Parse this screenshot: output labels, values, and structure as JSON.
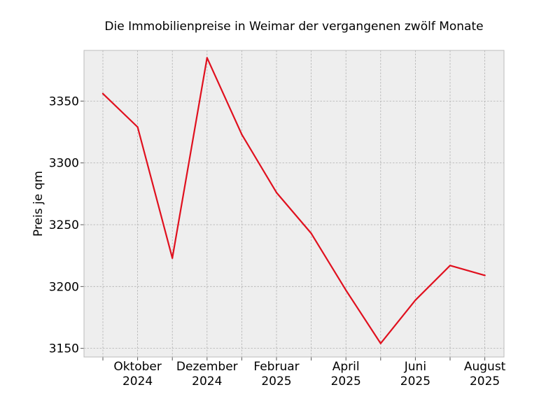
{
  "chart_data": {
    "type": "line",
    "title": "Die Immobilienpreise in Weimar der vergangenen zwölf Monate",
    "xlabel": "",
    "ylabel": "Preis je qm",
    "x": [
      "2024-09",
      "2024-10",
      "2024-11",
      "2024-12",
      "2025-01",
      "2025-02",
      "2025-03",
      "2025-04",
      "2025-05",
      "2025-06",
      "2025-07",
      "2025-08"
    ],
    "x_tick_labels": [
      {
        "x": "2024-10",
        "line1": "Oktober",
        "line2": "2024"
      },
      {
        "x": "2024-12",
        "line1": "Dezember",
        "line2": "2024"
      },
      {
        "x": "2025-02",
        "line1": "Februar",
        "line2": "2025"
      },
      {
        "x": "2025-04",
        "line1": "April",
        "line2": "2025"
      },
      {
        "x": "2025-06",
        "line1": "Juni",
        "line2": "2025"
      },
      {
        "x": "2025-08",
        "line1": "August",
        "line2": "2025"
      }
    ],
    "series": [
      {
        "values": [
          3356,
          3329,
          3223,
          3385,
          3323,
          3276,
          3243,
          3197,
          3154,
          3189,
          3217,
          3209
        ]
      }
    ],
    "y_ticks": [
      3150,
      3200,
      3250,
      3300,
      3350
    ],
    "ylim": [
      3143,
      3391
    ],
    "grid": true,
    "colors": {
      "line": "#e0101e",
      "plot_background": "#eeeeee",
      "grid": "#b0b0b0",
      "frame": "#bcbcbc"
    }
  }
}
